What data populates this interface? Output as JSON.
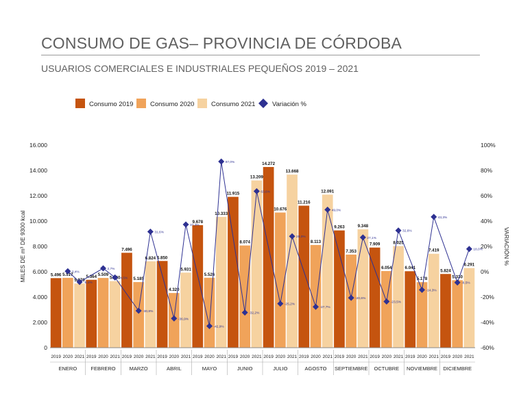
{
  "title": "CONSUMO DE GAS– PROVINCIA DE CÓRDOBA",
  "subtitle": "USUARIOS COMERCIALES E INDUSTRIALES PEQUEÑOS 2019 – 2021",
  "colors": {
    "c2019": "#c5540f",
    "c2020": "#f0a35a",
    "c2021": "#f6d2a0",
    "variation": "#2e3192"
  },
  "chart_data": {
    "type": "bar",
    "ylabel": "MILES DE m³ DE 9300 kcal",
    "y2label": "VARIACIÓN %",
    "ylim": [
      0,
      16000
    ],
    "y2lim": [
      -60,
      100
    ],
    "yticks": [
      "0",
      "2.000",
      "4.000",
      "6.000",
      "8.000",
      "10.000",
      "12.000",
      "14.000",
      "16.000"
    ],
    "y2ticks": [
      "-60%",
      "-40%",
      "-20%",
      "0%",
      "20%",
      "40%",
      "60%",
      "80%",
      "100%"
    ],
    "categories": [
      "ENERO",
      "FEBRERO",
      "MARZO",
      "ABRIL",
      "MAYO",
      "JUNIO",
      "JULIO",
      "AGOSTO",
      "SEPTIEMBRE",
      "OCTUBRE",
      "NOVIEMBRE",
      "DICIEMBRE"
    ],
    "years": [
      "2019",
      "2020",
      "2021"
    ],
    "series": [
      {
        "name": "Consumo 2019",
        "values": [
          5496,
          5364,
          7496,
          6850,
          9678,
          11915,
          14272,
          11216,
          9263,
          7909,
          6041,
          5824
        ],
        "labels": [
          "5.496",
          "5.364",
          "7.496",
          "6.850",
          "9.678",
          "11.915",
          "14.272",
          "11.216",
          "9.263",
          "7.909",
          "6.041",
          "5.824"
        ]
      },
      {
        "name": "Consumo 2020",
        "values": [
          5517,
          5509,
          5185,
          4320,
          5526,
          8074,
          10676,
          8113,
          7353,
          6054,
          5178,
          5330
        ],
        "labels": [
          "5.517",
          "5.509",
          "5.185",
          "4.320",
          "5.526",
          "8.074",
          "10.676",
          "8.113",
          "7.353",
          "6.054",
          "5.178",
          "5.330"
        ]
      },
      {
        "name": "Consumo 2021",
        "values": [
          5070,
          5260,
          6824,
          5931,
          10333,
          13209,
          13668,
          12091,
          9348,
          8025,
          7419,
          6291
        ],
        "labels": [
          "5.070",
          "5.260",
          "6.824",
          "5.931",
          "10.333",
          "13.209",
          "13.668",
          "12.091",
          "9.348",
          "8.025",
          "7.419",
          "6.291"
        ]
      }
    ],
    "variation": {
      "name": "Variación %",
      "points": [
        {
          "value": 0.4,
          "label": "0,4%"
        },
        {
          "value": -8.1,
          "label": "-8,1%"
        },
        {
          "value": 2.7,
          "label": "2,7%"
        },
        {
          "value": -4.5,
          "label": "-4,5%"
        },
        {
          "value": -30.8,
          "label": "-30,8%"
        },
        {
          "value": 31.6,
          "label": "31,6%"
        },
        {
          "value": -36.9,
          "label": "-36,9%"
        },
        {
          "value": 37.3,
          "label": "37,3%"
        },
        {
          "value": -42.9,
          "label": "-42,9%"
        },
        {
          "value": 87.0,
          "label": "87,0%"
        },
        {
          "value": -32.2,
          "label": "-32,2%"
        },
        {
          "value": 63.6,
          "label": "63,6%"
        },
        {
          "value": -25.2,
          "label": "-25,2%"
        },
        {
          "value": 28.0,
          "label": "28,0%"
        },
        {
          "value": -27.7,
          "label": "-27,7%"
        },
        {
          "value": 49.0,
          "label": "49,0%"
        },
        {
          "value": -20.6,
          "label": "-20,6%"
        },
        {
          "value": 27.1,
          "label": "27,1%"
        },
        {
          "value": -23.5,
          "label": "-23,5%"
        },
        {
          "value": 32.6,
          "label": "32,6%"
        },
        {
          "value": -14.3,
          "label": "-14,3%"
        },
        {
          "value": 43.3,
          "label": "43,3%"
        },
        {
          "value": -8.5,
          "label": "-8,5%"
        },
        {
          "value": 18.0,
          "label": "18,0%"
        }
      ]
    },
    "legend": [
      "Consumo 2019",
      "Consumo 2020",
      "Consumo 2021",
      "Variación %"
    ],
    "legend_position": "top-left",
    "grid": false
  }
}
